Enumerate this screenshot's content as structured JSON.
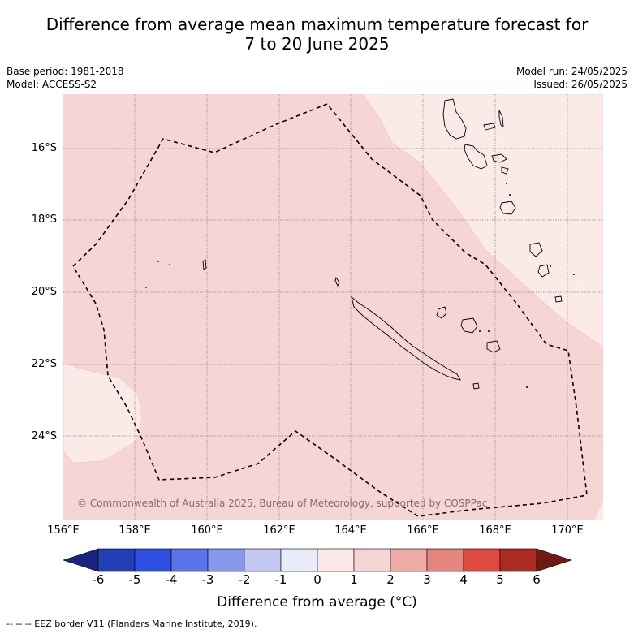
{
  "title": "Difference from average mean maximum temperature forecast for",
  "subtitle": "7 to 20 June 2025",
  "base_period": "Base period: 1981-2018",
  "model": "Model: ACCESS-S2",
  "model_run": "Model run: 24/05/2025",
  "issued": "Issued: 26/05/2025",
  "lat_labels": [
    "16°S",
    "18°S",
    "20°S",
    "22°S",
    "24°S"
  ],
  "lon_labels": [
    "156°E",
    "158°E",
    "160°E",
    "162°E",
    "164°E",
    "166°E",
    "168°E",
    "170°E"
  ],
  "colorbar": {
    "ticks": [
      "-6",
      "-5",
      "-4",
      "-3",
      "-2",
      "-1",
      "0",
      "1",
      "2",
      "3",
      "4",
      "5",
      "6"
    ],
    "colors": [
      "#1a237e",
      "#233fb5",
      "#2f4fe0",
      "#5a73e6",
      "#8798ea",
      "#c3c9f3",
      "#e8ebf8",
      "#fbe8e6",
      "#f4d5d3",
      "#edaca7",
      "#e5867e",
      "#dd4a3e",
      "#aa2b22",
      "#6e1a14"
    ],
    "label": "Difference from average (°C)"
  },
  "legend_note": "--  --  -- EEZ border V11 (Flanders Marine Institute, 2019).",
  "copyright": "© Commonwealth of Australia 2025, Bureau of Meteorology, supported by COSPPac",
  "map_colors": {
    "main": "#f5d6d4",
    "light": "#fbeae8",
    "land_outline": "#000000"
  }
}
